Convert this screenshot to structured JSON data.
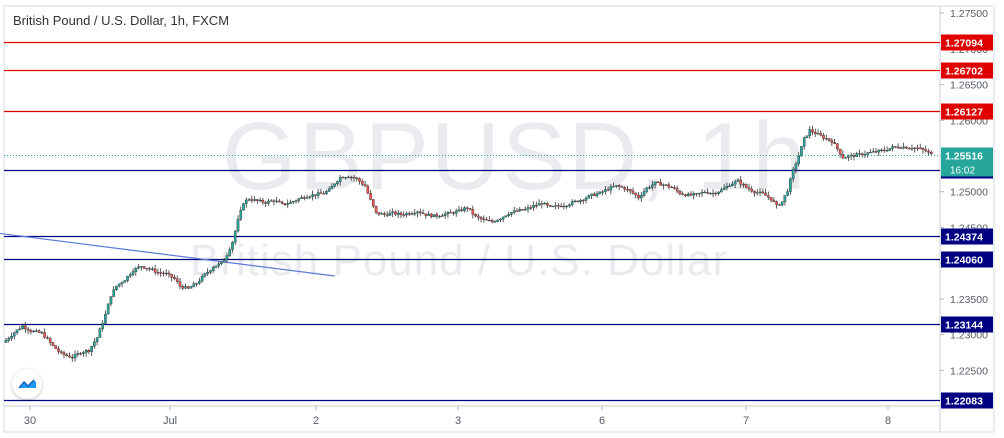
{
  "chart_title": "British Pound / U.S. Dollar, 1h, FXCM",
  "watermark": {
    "symbol": "GBPUSD, 1h",
    "name": "British Pound / U.S. Dollar"
  },
  "logo_icon": "tradingview-logo-icon",
  "colors": {
    "up": "#26a69a",
    "down": "#ef5350",
    "resistance": "#e00000",
    "support": "#000080",
    "trendline": "#5b7bd5",
    "current_price_line": "#26a69a"
  },
  "chart_data": {
    "type": "candlestick",
    "title": "British Pound / U.S. Dollar, 1h, FXCM",
    "ylim": [
      1.22,
      1.276
    ],
    "y_ticks": [
      "1.27500",
      "1.27000",
      "1.26500",
      "1.26000",
      "1.25500",
      "1.25000",
      "1.24500",
      "1.24000",
      "1.23500",
      "1.23000",
      "1.22500"
    ],
    "x_ticks": [
      "30",
      "Jul",
      "2",
      "3",
      "6",
      "7",
      "8"
    ],
    "grid": false,
    "current_price": {
      "value": "1.25516",
      "countdown": "16:02"
    },
    "horizontal_levels": [
      {
        "value": "1.27094",
        "kind": "resistance"
      },
      {
        "value": "1.26702",
        "kind": "resistance"
      },
      {
        "value": "1.26127",
        "kind": "resistance"
      },
      {
        "value": "1.25310",
        "kind": "support"
      },
      {
        "value": "1.24374",
        "kind": "support"
      },
      {
        "value": "1.24060",
        "kind": "support"
      },
      {
        "value": "1.23144",
        "kind": "support"
      },
      {
        "value": "1.22083",
        "kind": "support"
      }
    ],
    "trendline": {
      "from": [
        -3,
        1.2442
      ],
      "to": [
        119,
        1.2382
      ]
    },
    "candle_anchors": [
      [
        0,
        1.2292
      ],
      [
        3,
        1.2303
      ],
      [
        6,
        1.2312
      ],
      [
        9,
        1.2305
      ],
      [
        13,
        1.2302
      ],
      [
        17,
        1.2284
      ],
      [
        20,
        1.2273
      ],
      [
        24,
        1.2268
      ],
      [
        27,
        1.2275
      ],
      [
        30,
        1.2278
      ],
      [
        33,
        1.2296
      ],
      [
        36,
        1.2328
      ],
      [
        38,
        1.2355
      ],
      [
        40,
        1.2368
      ],
      [
        43,
        1.2377
      ],
      [
        46,
        1.239
      ],
      [
        49,
        1.2396
      ],
      [
        52,
        1.2392
      ],
      [
        55,
        1.2387
      ],
      [
        58,
        1.2385
      ],
      [
        61,
        1.2378
      ],
      [
        63,
        1.2368
      ],
      [
        66,
        1.2364
      ],
      [
        69,
        1.2372
      ],
      [
        72,
        1.2384
      ],
      [
        75,
        1.2395
      ],
      [
        78,
        1.24
      ],
      [
        80,
        1.2412
      ],
      [
        82,
        1.243
      ],
      [
        84,
        1.246
      ],
      [
        86,
        1.2485
      ],
      [
        88,
        1.249
      ],
      [
        91,
        1.2487
      ],
      [
        94,
        1.2485
      ],
      [
        97,
        1.2488
      ],
      [
        100,
        1.2482
      ],
      [
        103,
        1.2485
      ],
      [
        106,
        1.249
      ],
      [
        109,
        1.2494
      ],
      [
        112,
        1.2496
      ],
      [
        115,
        1.2498
      ],
      [
        117,
        1.2502
      ],
      [
        119,
        1.2512
      ],
      [
        121,
        1.252
      ],
      [
        124,
        1.2522
      ],
      [
        127,
        1.2518
      ],
      [
        130,
        1.2508
      ],
      [
        132,
        1.2488
      ],
      [
        134,
        1.247
      ],
      [
        137,
        1.2468
      ],
      [
        140,
        1.247
      ],
      [
        143,
        1.2468
      ],
      [
        146,
        1.247
      ],
      [
        149,
        1.2473
      ],
      [
        152,
        1.2468
      ],
      [
        155,
        1.2466
      ],
      [
        158,
        1.2468
      ],
      [
        161,
        1.247
      ],
      [
        164,
        1.2473
      ],
      [
        167,
        1.2478
      ],
      [
        170,
        1.2465
      ],
      [
        173,
        1.246
      ],
      [
        176,
        1.2458
      ],
      [
        179,
        1.2463
      ],
      [
        182,
        1.247
      ],
      [
        185,
        1.2473
      ],
      [
        188,
        1.2475
      ],
      [
        191,
        1.248
      ],
      [
        194,
        1.2484
      ],
      [
        197,
        1.2478
      ],
      [
        200,
        1.248
      ],
      [
        203,
        1.2482
      ],
      [
        206,
        1.2486
      ],
      [
        209,
        1.249
      ],
      [
        212,
        1.2495
      ],
      [
        215,
        1.2498
      ],
      [
        218,
        1.2504
      ],
      [
        221,
        1.2508
      ],
      [
        224,
        1.2505
      ],
      [
        227,
        1.2498
      ],
      [
        229,
        1.2492
      ],
      [
        232,
        1.2505
      ],
      [
        235,
        1.2512
      ],
      [
        238,
        1.251
      ],
      [
        241,
        1.2506
      ],
      [
        244,
        1.2498
      ],
      [
        247,
        1.2495
      ],
      [
        250,
        1.2496
      ],
      [
        253,
        1.25
      ],
      [
        256,
        1.2498
      ],
      [
        259,
        1.2502
      ],
      [
        262,
        1.251
      ],
      [
        265,
        1.2515
      ],
      [
        268,
        1.2506
      ],
      [
        271,
        1.25
      ],
      [
        274,
        1.2497
      ],
      [
        277,
        1.249
      ],
      [
        279,
        1.248
      ],
      [
        281,
        1.2486
      ],
      [
        283,
        1.2502
      ],
      [
        285,
        1.253
      ],
      [
        287,
        1.255
      ],
      [
        289,
        1.2574
      ],
      [
        291,
        1.2586
      ],
      [
        293,
        1.2582
      ],
      [
        296,
        1.2576
      ],
      [
        299,
        1.2571
      ],
      [
        301,
        1.256
      ],
      [
        303,
        1.2548
      ],
      [
        306,
        1.255
      ],
      [
        309,
        1.2552
      ],
      [
        312,
        1.2554
      ],
      [
        315,
        1.2556
      ],
      [
        318,
        1.2558
      ],
      [
        321,
        1.2562
      ],
      [
        324,
        1.2563
      ],
      [
        327,
        1.2562
      ],
      [
        330,
        1.2561
      ],
      [
        333,
        1.2557
      ],
      [
        335,
        1.2552
      ]
    ]
  }
}
